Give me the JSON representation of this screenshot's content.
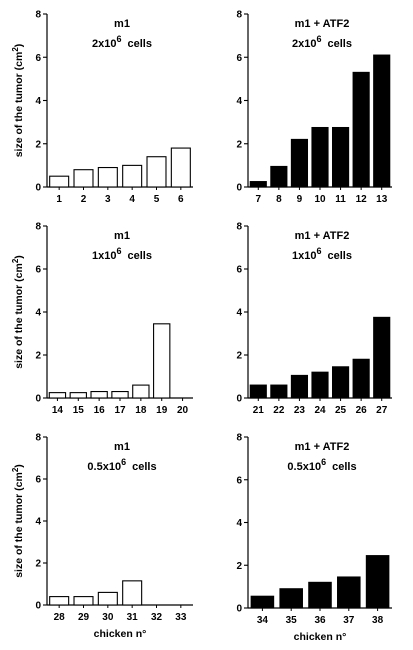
{
  "chart_data": [
    {
      "type": "bar",
      "label_line1": "m1",
      "label_line2": "2x10",
      "label_exp": "6",
      "label_unit": "cells",
      "categories": [
        "1",
        "2",
        "3",
        "4",
        "5",
        "6"
      ],
      "values": [
        0.5,
        0.8,
        0.9,
        1.0,
        1.4,
        1.8
      ],
      "fill": "open",
      "ylim": [
        0,
        8
      ],
      "yticks": [
        "0",
        "2",
        "4",
        "6",
        "8"
      ],
      "ylabel": "size of the tumor (cm",
      "ylabel_exp": "2",
      "ylabel_close": ")",
      "xlabel": ""
    },
    {
      "type": "bar",
      "label_line1": "m1 + ATF2",
      "label_line2": "2x10",
      "label_exp": "6",
      "label_unit": "cells",
      "categories": [
        "7",
        "8",
        "9",
        "10",
        "11",
        "12",
        "13"
      ],
      "values": [
        0.25,
        0.95,
        2.2,
        2.75,
        2.75,
        5.3,
        6.1
      ],
      "fill": "solid",
      "ylim": [
        0,
        8
      ],
      "yticks": [
        "0",
        "2",
        "4",
        "6",
        "8"
      ],
      "ylabel": "",
      "xlabel": ""
    },
    {
      "type": "bar",
      "label_line1": "m1",
      "label_line2": "1x10",
      "label_exp": "6",
      "label_unit": "cells",
      "categories": [
        "14",
        "15",
        "16",
        "17",
        "18",
        "19",
        "20"
      ],
      "values": [
        0.25,
        0.25,
        0.3,
        0.3,
        0.6,
        3.45,
        0
      ],
      "fill": "open",
      "ylim": [
        0,
        8
      ],
      "yticks": [
        "0",
        "2",
        "4",
        "6",
        "8"
      ],
      "ylabel": "size of the tumor (cm",
      "ylabel_exp": "2",
      "ylabel_close": ")",
      "xlabel": ""
    },
    {
      "type": "bar",
      "label_line1": "m1 + ATF2",
      "label_line2": "1x10",
      "label_exp": "6",
      "label_unit": "cells",
      "categories": [
        "21",
        "22",
        "23",
        "24",
        "25",
        "26",
        "27"
      ],
      "values": [
        0.6,
        0.6,
        1.05,
        1.2,
        1.45,
        1.8,
        3.75
      ],
      "fill": "solid",
      "ylim": [
        0,
        8
      ],
      "yticks": [
        "0",
        "2",
        "4",
        "6",
        "8"
      ],
      "ylabel": "",
      "xlabel": ""
    },
    {
      "type": "bar",
      "label_line1": "m1",
      "label_line2": "0.5x10",
      "label_exp": "6",
      "label_unit": "cells",
      "categories": [
        "28",
        "29",
        "30",
        "31",
        "32",
        "33"
      ],
      "values": [
        0.4,
        0.4,
        0.6,
        1.15,
        0,
        0
      ],
      "fill": "open",
      "ylim": [
        0,
        8
      ],
      "yticks": [
        "0",
        "2",
        "4",
        "6",
        "8"
      ],
      "ylabel": "size of the tumor (cm",
      "ylabel_exp": "2",
      "ylabel_close": ")",
      "xlabel": "chicken n°"
    },
    {
      "type": "bar",
      "label_line1": "m1 + ATF2",
      "label_line2": "0.5x10",
      "label_exp": "6",
      "label_unit": "cells",
      "categories": [
        "34",
        "35",
        "36",
        "37",
        "38"
      ],
      "values": [
        0.55,
        0.9,
        1.2,
        1.45,
        2.45
      ],
      "fill": "solid",
      "ylim": [
        0,
        8
      ],
      "yticks": [
        "0",
        "2",
        "4",
        "6",
        "8"
      ],
      "ylabel": "",
      "xlabel": "chicken n°"
    }
  ]
}
